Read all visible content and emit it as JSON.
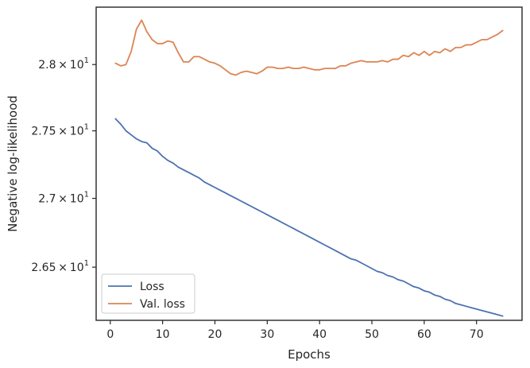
{
  "chart_data": {
    "type": "line",
    "xlabel": "Epochs",
    "ylabel": "Negative log-likelihood",
    "xlim": [
      -2.7,
      78.7
    ],
    "ylim": [
      26.12,
      28.44
    ],
    "yscale": "log",
    "grid": false,
    "legend_position": "lower-left",
    "x_ticks": [
      0,
      10,
      20,
      30,
      40,
      50,
      60,
      70
    ],
    "y_ticks": [
      {
        "value": 26.5,
        "mantissa": "2.65",
        "exponent": "1"
      },
      {
        "value": 27.0,
        "mantissa": "2.7",
        "exponent": "1"
      },
      {
        "value": 27.5,
        "mantissa": "2.75",
        "exponent": "1"
      },
      {
        "value": 28.0,
        "mantissa": "2.8",
        "exponent": "1"
      }
    ],
    "tick_times": "×",
    "tick_base": "10",
    "series": [
      {
        "name": "Loss",
        "color": "#4c72b0",
        "x": [
          1,
          2,
          3,
          4,
          5,
          6,
          7,
          8,
          9,
          10,
          11,
          12,
          13,
          14,
          15,
          16,
          17,
          18,
          19,
          20,
          21,
          22,
          23,
          24,
          25,
          26,
          27,
          28,
          29,
          30,
          31,
          32,
          33,
          34,
          35,
          36,
          37,
          38,
          39,
          40,
          41,
          42,
          43,
          44,
          45,
          46,
          47,
          48,
          49,
          50,
          51,
          52,
          53,
          54,
          55,
          56,
          57,
          58,
          59,
          60,
          61,
          62,
          63,
          64,
          65,
          66,
          67,
          68,
          69,
          70,
          71,
          72,
          73,
          74,
          75
        ],
        "values": [
          27.59,
          27.55,
          27.5,
          27.47,
          27.44,
          27.42,
          27.41,
          27.37,
          27.35,
          27.31,
          27.28,
          27.26,
          27.23,
          27.21,
          27.19,
          27.17,
          27.15,
          27.12,
          27.1,
          27.08,
          27.06,
          27.04,
          27.02,
          27.0,
          26.98,
          26.96,
          26.94,
          26.92,
          26.9,
          26.88,
          26.86,
          26.84,
          26.82,
          26.8,
          26.78,
          26.76,
          26.74,
          26.72,
          26.7,
          26.68,
          26.66,
          26.64,
          26.62,
          26.6,
          26.58,
          26.56,
          26.55,
          26.53,
          26.51,
          26.49,
          26.47,
          26.46,
          26.44,
          26.43,
          26.41,
          26.4,
          26.38,
          26.36,
          26.35,
          26.33,
          26.32,
          26.3,
          26.29,
          26.27,
          26.26,
          26.24,
          26.23,
          26.22,
          26.21,
          26.2,
          26.19,
          26.18,
          26.17,
          26.16,
          26.15
        ]
      },
      {
        "name": "Val. loss",
        "color": "#dd8452",
        "x": [
          1,
          2,
          3,
          4,
          5,
          6,
          7,
          8,
          9,
          10,
          11,
          12,
          13,
          14,
          15,
          16,
          17,
          18,
          19,
          20,
          21,
          22,
          23,
          24,
          25,
          26,
          27,
          28,
          29,
          30,
          31,
          32,
          33,
          34,
          35,
          36,
          37,
          38,
          39,
          40,
          41,
          42,
          43,
          44,
          45,
          46,
          47,
          48,
          49,
          50,
          51,
          52,
          53,
          54,
          55,
          56,
          57,
          58,
          59,
          60,
          61,
          62,
          63,
          64,
          65,
          66,
          67,
          68,
          69,
          70,
          71,
          72,
          73,
          74,
          75
        ],
        "values": [
          28.01,
          27.99,
          28.0,
          28.1,
          28.27,
          28.34,
          28.25,
          28.19,
          28.16,
          28.16,
          28.18,
          28.17,
          28.09,
          28.02,
          28.02,
          28.06,
          28.06,
          28.04,
          28.02,
          28.01,
          27.99,
          27.96,
          27.93,
          27.92,
          27.94,
          27.95,
          27.94,
          27.93,
          27.95,
          27.98,
          27.98,
          27.97,
          27.97,
          27.98,
          27.97,
          27.97,
          27.98,
          27.97,
          27.96,
          27.96,
          27.97,
          27.97,
          27.97,
          27.99,
          27.99,
          28.01,
          28.02,
          28.03,
          28.02,
          28.02,
          28.02,
          28.03,
          28.02,
          28.04,
          28.04,
          28.07,
          28.06,
          28.09,
          28.07,
          28.1,
          28.07,
          28.1,
          28.09,
          28.12,
          28.1,
          28.13,
          28.13,
          28.15,
          28.15,
          28.17,
          28.19,
          28.19,
          28.21,
          28.23,
          28.26
        ]
      }
    ]
  }
}
